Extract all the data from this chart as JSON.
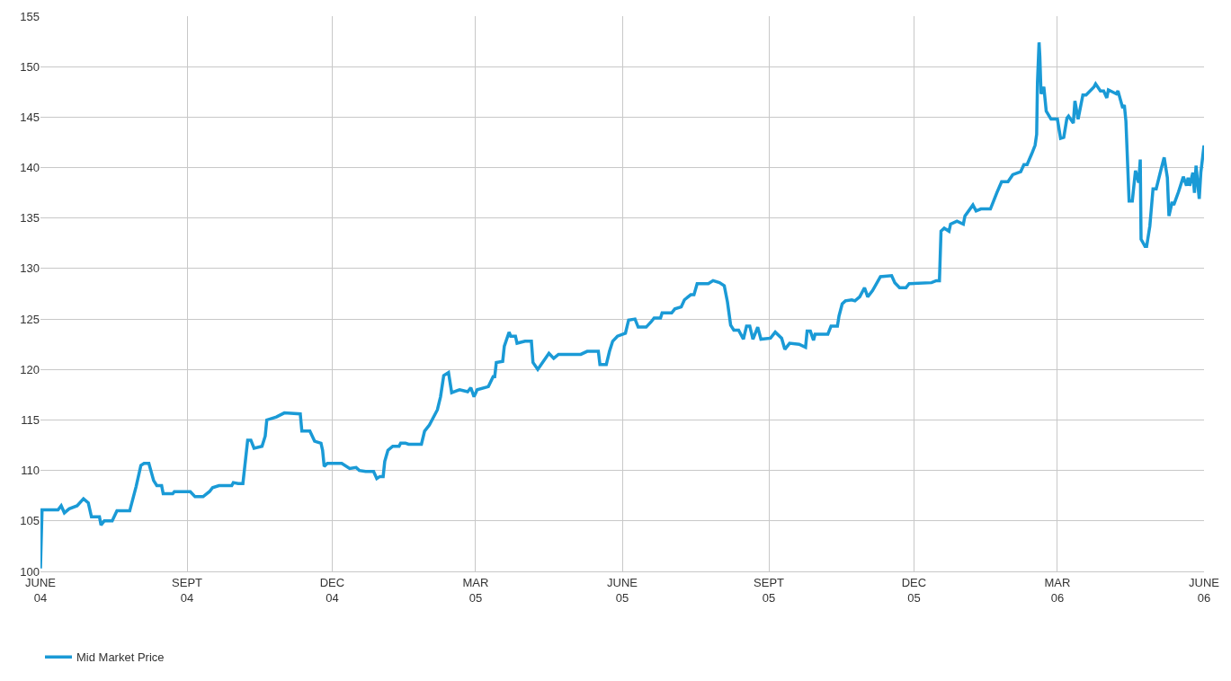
{
  "chart_data": {
    "type": "line",
    "legend": "bottom left",
    "grid": true,
    "marker": "none",
    "line_style": "solid",
    "xlim": [
      "2004-06-01",
      "2006-06-01"
    ],
    "xticks": [
      {
        "value": "2004-06-01",
        "label": "JUNE\n04"
      },
      {
        "value": "2004-09-01",
        "label": "SEPT\n04"
      },
      {
        "value": "2004-12-01",
        "label": "DEC\n04"
      },
      {
        "value": "2005-03-01",
        "label": "MAR\n05"
      },
      {
        "value": "2005-06-01",
        "label": "JUNE\n05"
      },
      {
        "value": "2005-09-01",
        "label": "SEPT\n05"
      },
      {
        "value": "2005-12-01",
        "label": "DEC\n05"
      },
      {
        "value": "2006-03-01",
        "label": "MAR\n06"
      },
      {
        "value": "2006-06-01",
        "label": "JUNE\n06"
      }
    ],
    "ylim": [
      100,
      155
    ],
    "yticks": [
      100,
      105,
      110,
      115,
      120,
      125,
      130,
      135,
      140,
      145,
      150,
      155
    ],
    "x": [
      "2004-06-01",
      "2004-06-02",
      "2004-06-12",
      "2004-06-14",
      "2004-06-16",
      "2004-06-19",
      "2004-06-24",
      "2004-06-28",
      "2004-07-01",
      "2004-07-03",
      "2004-07-08",
      "2004-07-09",
      "2004-07-11",
      "2004-07-16",
      "2004-07-19",
      "2004-07-27",
      "2004-07-31",
      "2004-08-03",
      "2004-08-05",
      "2004-08-08",
      "2004-08-11",
      "2004-08-13",
      "2004-08-16",
      "2004-08-17",
      "2004-08-23",
      "2004-08-24",
      "2004-09-03",
      "2004-09-06",
      "2004-09-11",
      "2004-09-15",
      "2004-09-17",
      "2004-09-21",
      "2004-09-29",
      "2004-09-30",
      "2004-10-03",
      "2004-10-06",
      "2004-10-09",
      "2004-10-11",
      "2004-10-13",
      "2004-10-18",
      "2004-10-20",
      "2004-10-21",
      "2004-10-27",
      "2004-11-01",
      "2004-11-11",
      "2004-11-12",
      "2004-11-17",
      "2004-11-20",
      "2004-11-24",
      "2004-11-25",
      "2004-11-26",
      "2004-11-28",
      "2004-12-07",
      "2004-12-12",
      "2004-12-16",
      "2004-12-18",
      "2004-12-22",
      "2004-12-27",
      "2004-12-29",
      "2004-12-31",
      "2005-01-02",
      "2005-01-03",
      "2005-01-05",
      "2005-01-08",
      "2005-01-12",
      "2005-01-13",
      "2005-01-16",
      "2005-01-18",
      "2005-01-26",
      "2005-01-28",
      "2005-01-31",
      "2005-02-05",
      "2005-02-07",
      "2005-02-09",
      "2005-02-12",
      "2005-02-14",
      "2005-02-19",
      "2005-02-24",
      "2005-02-26",
      "2005-02-28",
      "2005-03-02",
      "2005-03-09",
      "2005-03-12",
      "2005-03-13",
      "2005-03-14",
      "2005-03-18",
      "2005-03-19",
      "2005-03-22",
      "2005-03-23",
      "2005-03-26",
      "2005-03-27",
      "2005-04-01",
      "2005-04-05",
      "2005-04-06",
      "2005-04-09",
      "2005-04-16",
      "2005-04-19",
      "2005-04-22",
      "2005-05-06",
      "2005-05-10",
      "2005-05-17",
      "2005-05-18",
      "2005-05-22",
      "2005-05-24",
      "2005-05-26",
      "2005-05-29",
      "2005-06-03",
      "2005-06-05",
      "2005-06-09",
      "2005-06-11",
      "2005-06-16",
      "2005-06-19",
      "2005-06-21",
      "2005-06-25",
      "2005-06-26",
      "2005-07-02",
      "2005-07-04",
      "2005-07-08",
      "2005-07-10",
      "2005-07-14",
      "2005-07-16",
      "2005-07-18",
      "2005-07-25",
      "2005-07-28",
      "2005-08-01",
      "2005-08-04",
      "2005-08-06",
      "2005-08-08",
      "2005-08-10",
      "2005-08-13",
      "2005-08-16",
      "2005-08-18",
      "2005-08-20",
      "2005-08-22",
      "2005-08-25",
      "2005-08-27",
      "2005-09-02",
      "2005-09-05",
      "2005-09-09",
      "2005-09-11",
      "2005-09-14",
      "2005-09-20",
      "2005-09-24",
      "2005-09-25",
      "2005-09-27",
      "2005-09-29",
      "2005-09-30",
      "2005-10-08",
      "2005-10-10",
      "2005-10-14",
      "2005-10-15",
      "2005-10-17",
      "2005-10-19",
      "2005-10-23",
      "2005-10-25",
      "2005-10-28",
      "2005-10-31",
      "2005-11-02",
      "2005-11-05",
      "2005-11-10",
      "2005-11-17",
      "2005-11-19",
      "2005-11-22",
      "2005-11-26",
      "2005-11-28",
      "2005-12-12",
      "2005-12-15",
      "2005-12-17",
      "2005-12-18",
      "2005-12-20",
      "2005-12-23",
      "2005-12-24",
      "2005-12-28",
      "2006-01-01",
      "2006-01-02",
      "2006-01-07",
      "2006-01-09",
      "2006-01-12",
      "2006-01-18",
      "2006-01-20",
      "2006-01-22",
      "2006-01-25",
      "2006-01-29",
      "2006-02-01",
      "2006-02-06",
      "2006-02-08",
      "2006-02-10",
      "2006-02-13",
      "2006-02-15",
      "2006-02-16",
      "2006-02-16T12:00",
      "2006-02-17T12:00",
      "2006-02-18",
      "2006-02-18T18:00",
      "2006-02-20T12:00",
      "2006-02-22",
      "2006-02-25",
      "2006-03-01",
      "2006-03-03",
      "2006-03-05",
      "2006-03-07",
      "2006-03-08",
      "2006-03-11",
      "2006-03-12",
      "2006-03-14",
      "2006-03-17",
      "2006-03-19",
      "2006-03-24",
      "2006-03-25",
      "2006-03-28",
      "2006-03-30",
      "2006-04-01",
      "2006-04-02",
      "2006-04-07",
      "2006-04-08",
      "2006-04-11",
      "2006-04-12",
      "2006-04-13",
      "2006-04-15",
      "2006-04-17",
      "2006-04-19",
      "2006-04-21",
      "2006-04-22",
      "2006-04-22T12:00",
      "2006-04-25",
      "2006-04-26",
      "2006-04-28",
      "2006-04-30",
      "2006-05-02",
      "2006-05-05",
      "2006-05-07",
      "2006-05-09",
      "2006-05-10",
      "2006-05-12",
      "2006-05-13",
      "2006-05-16",
      "2006-05-19",
      "2006-05-21",
      "2006-05-22",
      "2006-05-23",
      "2006-05-25",
      "2006-05-26",
      "2006-05-27",
      "2006-05-29",
      "2006-05-30",
      "2006-06-01"
    ],
    "series": [
      {
        "name": "Mid Market Price",
        "color": "#1a9ad6",
        "values": [
          100.3,
          106.1,
          106.1,
          106.5,
          105.8,
          106.2,
          106.5,
          107.2,
          106.8,
          105.4,
          105.4,
          104.6,
          105.0,
          105.0,
          106.0,
          106.0,
          108.4,
          110.5,
          110.7,
          110.7,
          109.0,
          108.5,
          108.5,
          107.7,
          107.7,
          107.9,
          107.9,
          107.4,
          107.4,
          107.9,
          108.3,
          108.5,
          108.5,
          108.8,
          108.7,
          108.7,
          113.0,
          113.0,
          112.2,
          112.4,
          113.4,
          115.0,
          115.3,
          115.7,
          115.6,
          113.9,
          113.9,
          112.9,
          112.7,
          112.0,
          110.4,
          110.7,
          110.7,
          110.2,
          110.3,
          110.0,
          109.9,
          109.9,
          109.2,
          109.4,
          109.4,
          110.9,
          112.0,
          112.4,
          112.4,
          112.7,
          112.7,
          112.6,
          112.6,
          113.9,
          114.5,
          116.0,
          117.3,
          119.4,
          119.7,
          117.7,
          118.0,
          117.8,
          118.2,
          117.3,
          118.0,
          118.3,
          119.3,
          119.3,
          120.7,
          120.8,
          122.3,
          123.7,
          123.3,
          123.3,
          122.6,
          122.8,
          122.8,
          120.7,
          120.0,
          121.6,
          121.1,
          121.5,
          121.5,
          121.8,
          121.8,
          120.5,
          120.5,
          121.8,
          122.8,
          123.3,
          123.6,
          124.9,
          125.0,
          124.2,
          124.2,
          124.7,
          125.1,
          125.1,
          125.6,
          125.6,
          126.0,
          126.2,
          126.9,
          127.4,
          127.4,
          128.5,
          128.5,
          128.8,
          128.6,
          128.3,
          126.7,
          124.4,
          123.9,
          123.9,
          123.0,
          124.3,
          124.3,
          123.0,
          124.2,
          123.0,
          123.1,
          123.7,
          123.1,
          122.0,
          122.6,
          122.5,
          122.2,
          123.8,
          123.8,
          122.9,
          123.5,
          123.5,
          124.3,
          124.3,
          125.3,
          126.5,
          126.8,
          126.9,
          126.8,
          127.2,
          128.1,
          127.2,
          127.8,
          129.2,
          129.3,
          128.6,
          128.1,
          128.1,
          128.5,
          128.6,
          128.8,
          128.8,
          133.7,
          134.0,
          133.7,
          134.4,
          134.7,
          134.4,
          135.2,
          136.3,
          135.7,
          135.9,
          135.9,
          136.7,
          137.5,
          138.6,
          138.6,
          139.3,
          139.6,
          140.3,
          140.3,
          141.4,
          142.2,
          143.3,
          148.4,
          152.4,
          151.0,
          147.3,
          148.0,
          145.6,
          144.8,
          144.8,
          142.9,
          143.0,
          144.9,
          145.1,
          144.4,
          146.6,
          144.8,
          147.2,
          147.2,
          148.0,
          148.3,
          147.6,
          147.6,
          146.9,
          147.7,
          147.3,
          147.6,
          145.9,
          146.2,
          144.6,
          136.7,
          136.7,
          139.7,
          138.5,
          140.8,
          132.9,
          132.2,
          132.2,
          134.2,
          137.9,
          137.9,
          139.8,
          141.0,
          139.0,
          135.2,
          136.6,
          136.3,
          137.6,
          139.1,
          138.2,
          139.0,
          138.2,
          139.5,
          137.5,
          140.2,
          136.9,
          139.5,
          142.2
        ]
      }
    ]
  }
}
